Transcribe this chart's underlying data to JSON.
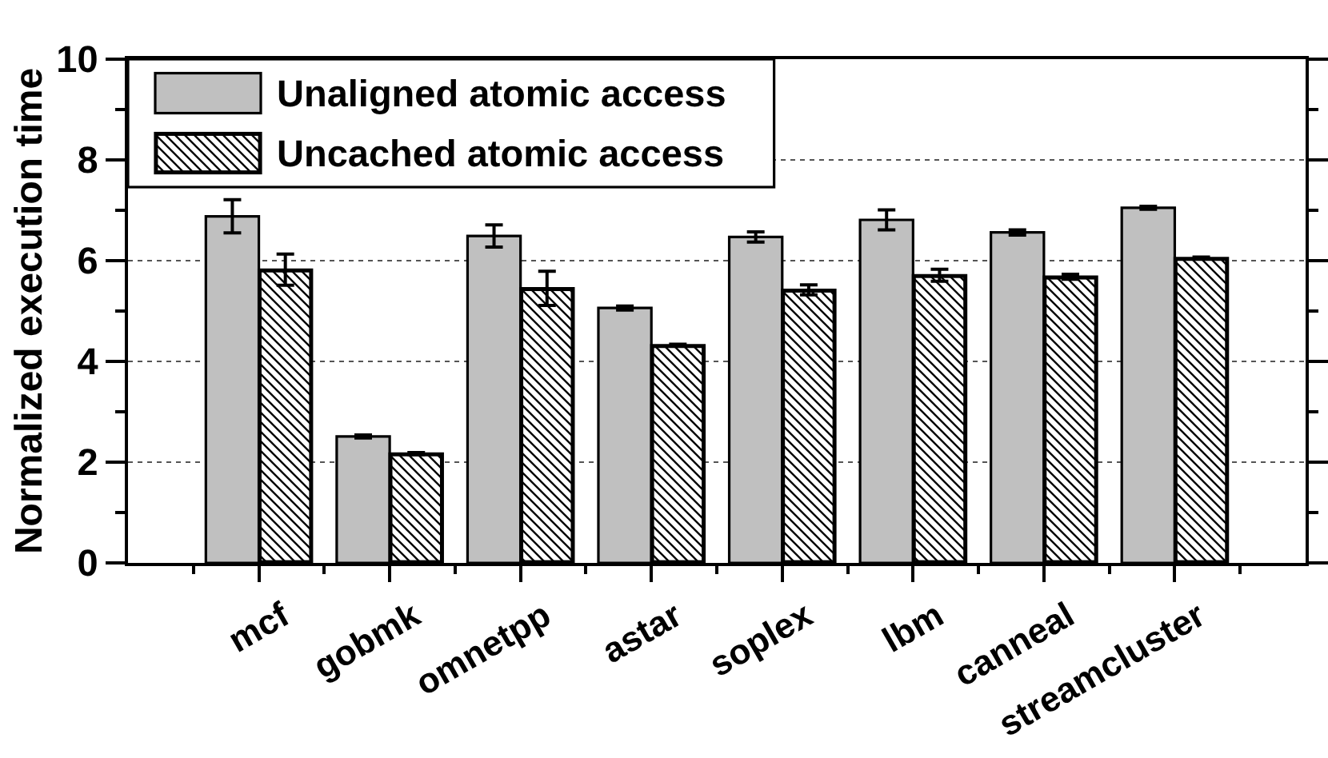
{
  "chart_data": {
    "type": "bar",
    "ylabel": "Normalized execution time",
    "categories": [
      "mcf",
      "gobmk",
      "omnetpp",
      "astar",
      "soplex",
      "lbm",
      "canneal",
      "streamcluster"
    ],
    "series": [
      {
        "name": "Unaligned atomic access",
        "color": "#c0c0c0",
        "values": [
          6.88,
          2.51,
          6.49,
          5.06,
          6.47,
          6.81,
          6.56,
          7.05
        ],
        "errors": [
          0.33,
          0.03,
          0.22,
          0.04,
          0.1,
          0.2,
          0.05,
          0.03
        ]
      },
      {
        "name": "Uncached atomic access",
        "color": "#000000",
        "values": [
          5.82,
          2.17,
          5.45,
          4.32,
          5.42,
          5.71,
          5.68,
          6.05
        ],
        "errors": [
          0.31,
          0.02,
          0.34,
          0.02,
          0.1,
          0.12,
          0.05,
          0.02
        ]
      }
    ],
    "ylim": [
      0,
      10
    ],
    "yticks": [
      0,
      2,
      4,
      6,
      8,
      10
    ],
    "grid": "y",
    "legend": "top left"
  }
}
